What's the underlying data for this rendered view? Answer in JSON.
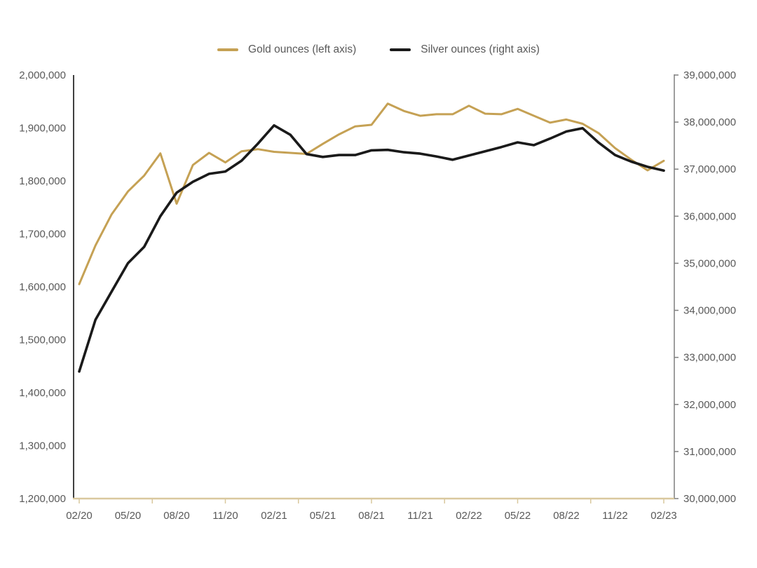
{
  "legend": {
    "gold_label": "Gold ounces (left axis)",
    "silver_label": "Silver ounces (right axis)"
  },
  "colors": {
    "gold": "#c5a154",
    "silver": "#1a1a1a",
    "axis_tan": "#d9c89e",
    "text": "#595959",
    "left_axis_line": "#404040",
    "right_axis_line": "#7f7f7f"
  },
  "chart_data": {
    "type": "line",
    "title": "",
    "grid": false,
    "legend_position": "top",
    "categories": [
      "02/20",
      "03/20",
      "04/20",
      "05/20",
      "06/20",
      "07/20",
      "08/20",
      "09/20",
      "10/20",
      "11/20",
      "12/20",
      "01/21",
      "02/21",
      "03/21",
      "04/21",
      "05/21",
      "06/21",
      "07/21",
      "08/21",
      "09/21",
      "10/21",
      "11/21",
      "12/21",
      "01/22",
      "02/22",
      "03/22",
      "04/22",
      "05/22",
      "06/22",
      "07/22",
      "08/22",
      "09/22",
      "10/22",
      "11/22",
      "12/22",
      "01/23",
      "02/23"
    ],
    "x_label_interval": 3,
    "x_labels_shown": [
      "02/20",
      "05/20",
      "08/20",
      "11/20",
      "02/21",
      "05/21",
      "08/21",
      "11/21",
      "02/22",
      "05/22",
      "08/22",
      "11/22",
      "02/23"
    ],
    "series": [
      {
        "name": "Gold ounces (left axis)",
        "axis": "left",
        "color": "#c5a154",
        "values": [
          1605000,
          1678000,
          1737000,
          1780000,
          1810000,
          1852000,
          1757000,
          1830000,
          1853000,
          1835000,
          1856000,
          1860000,
          1855000,
          1853000,
          1851000,
          1870000,
          1888000,
          1903000,
          1906000,
          1946000,
          1932000,
          1923000,
          1926000,
          1926000,
          1942000,
          1927000,
          1926000,
          1936000,
          1923000,
          1910000,
          1916000,
          1908000,
          1890000,
          1862000,
          1840000,
          1820000,
          1838000
        ]
      },
      {
        "name": "Silver ounces (right axis)",
        "axis": "right",
        "color": "#1a1a1a",
        "values": [
          32700000,
          33800000,
          34400000,
          35000000,
          35350000,
          36000000,
          36500000,
          36730000,
          36900000,
          36950000,
          37180000,
          37540000,
          37930000,
          37730000,
          37320000,
          37260000,
          37300000,
          37300000,
          37400000,
          37410000,
          37360000,
          37330000,
          37270000,
          37200000,
          37290000,
          37380000,
          37470000,
          37570000,
          37510000,
          37650000,
          37800000,
          37870000,
          37560000,
          37300000,
          37160000,
          37050000,
          36970000
        ]
      }
    ],
    "left_axis": {
      "min": 1200000,
      "max": 2000000,
      "step": 100000,
      "tick_labels": [
        "2,000,000",
        "1,900,000",
        "1,800,000",
        "1,700,000",
        "1,600,000",
        "1,500,000",
        "1,400,000",
        "1,300,000",
        "1,200,000"
      ]
    },
    "right_axis": {
      "min": 30000000,
      "max": 39000000,
      "step": 1000000,
      "tick_labels": [
        "39,000,000",
        "38,000,000",
        "37,000,000",
        "36,000,000",
        "35,000,000",
        "34,000,000",
        "33,000,000",
        "32,000,000",
        "31,000,000",
        "30,000,000"
      ]
    }
  }
}
